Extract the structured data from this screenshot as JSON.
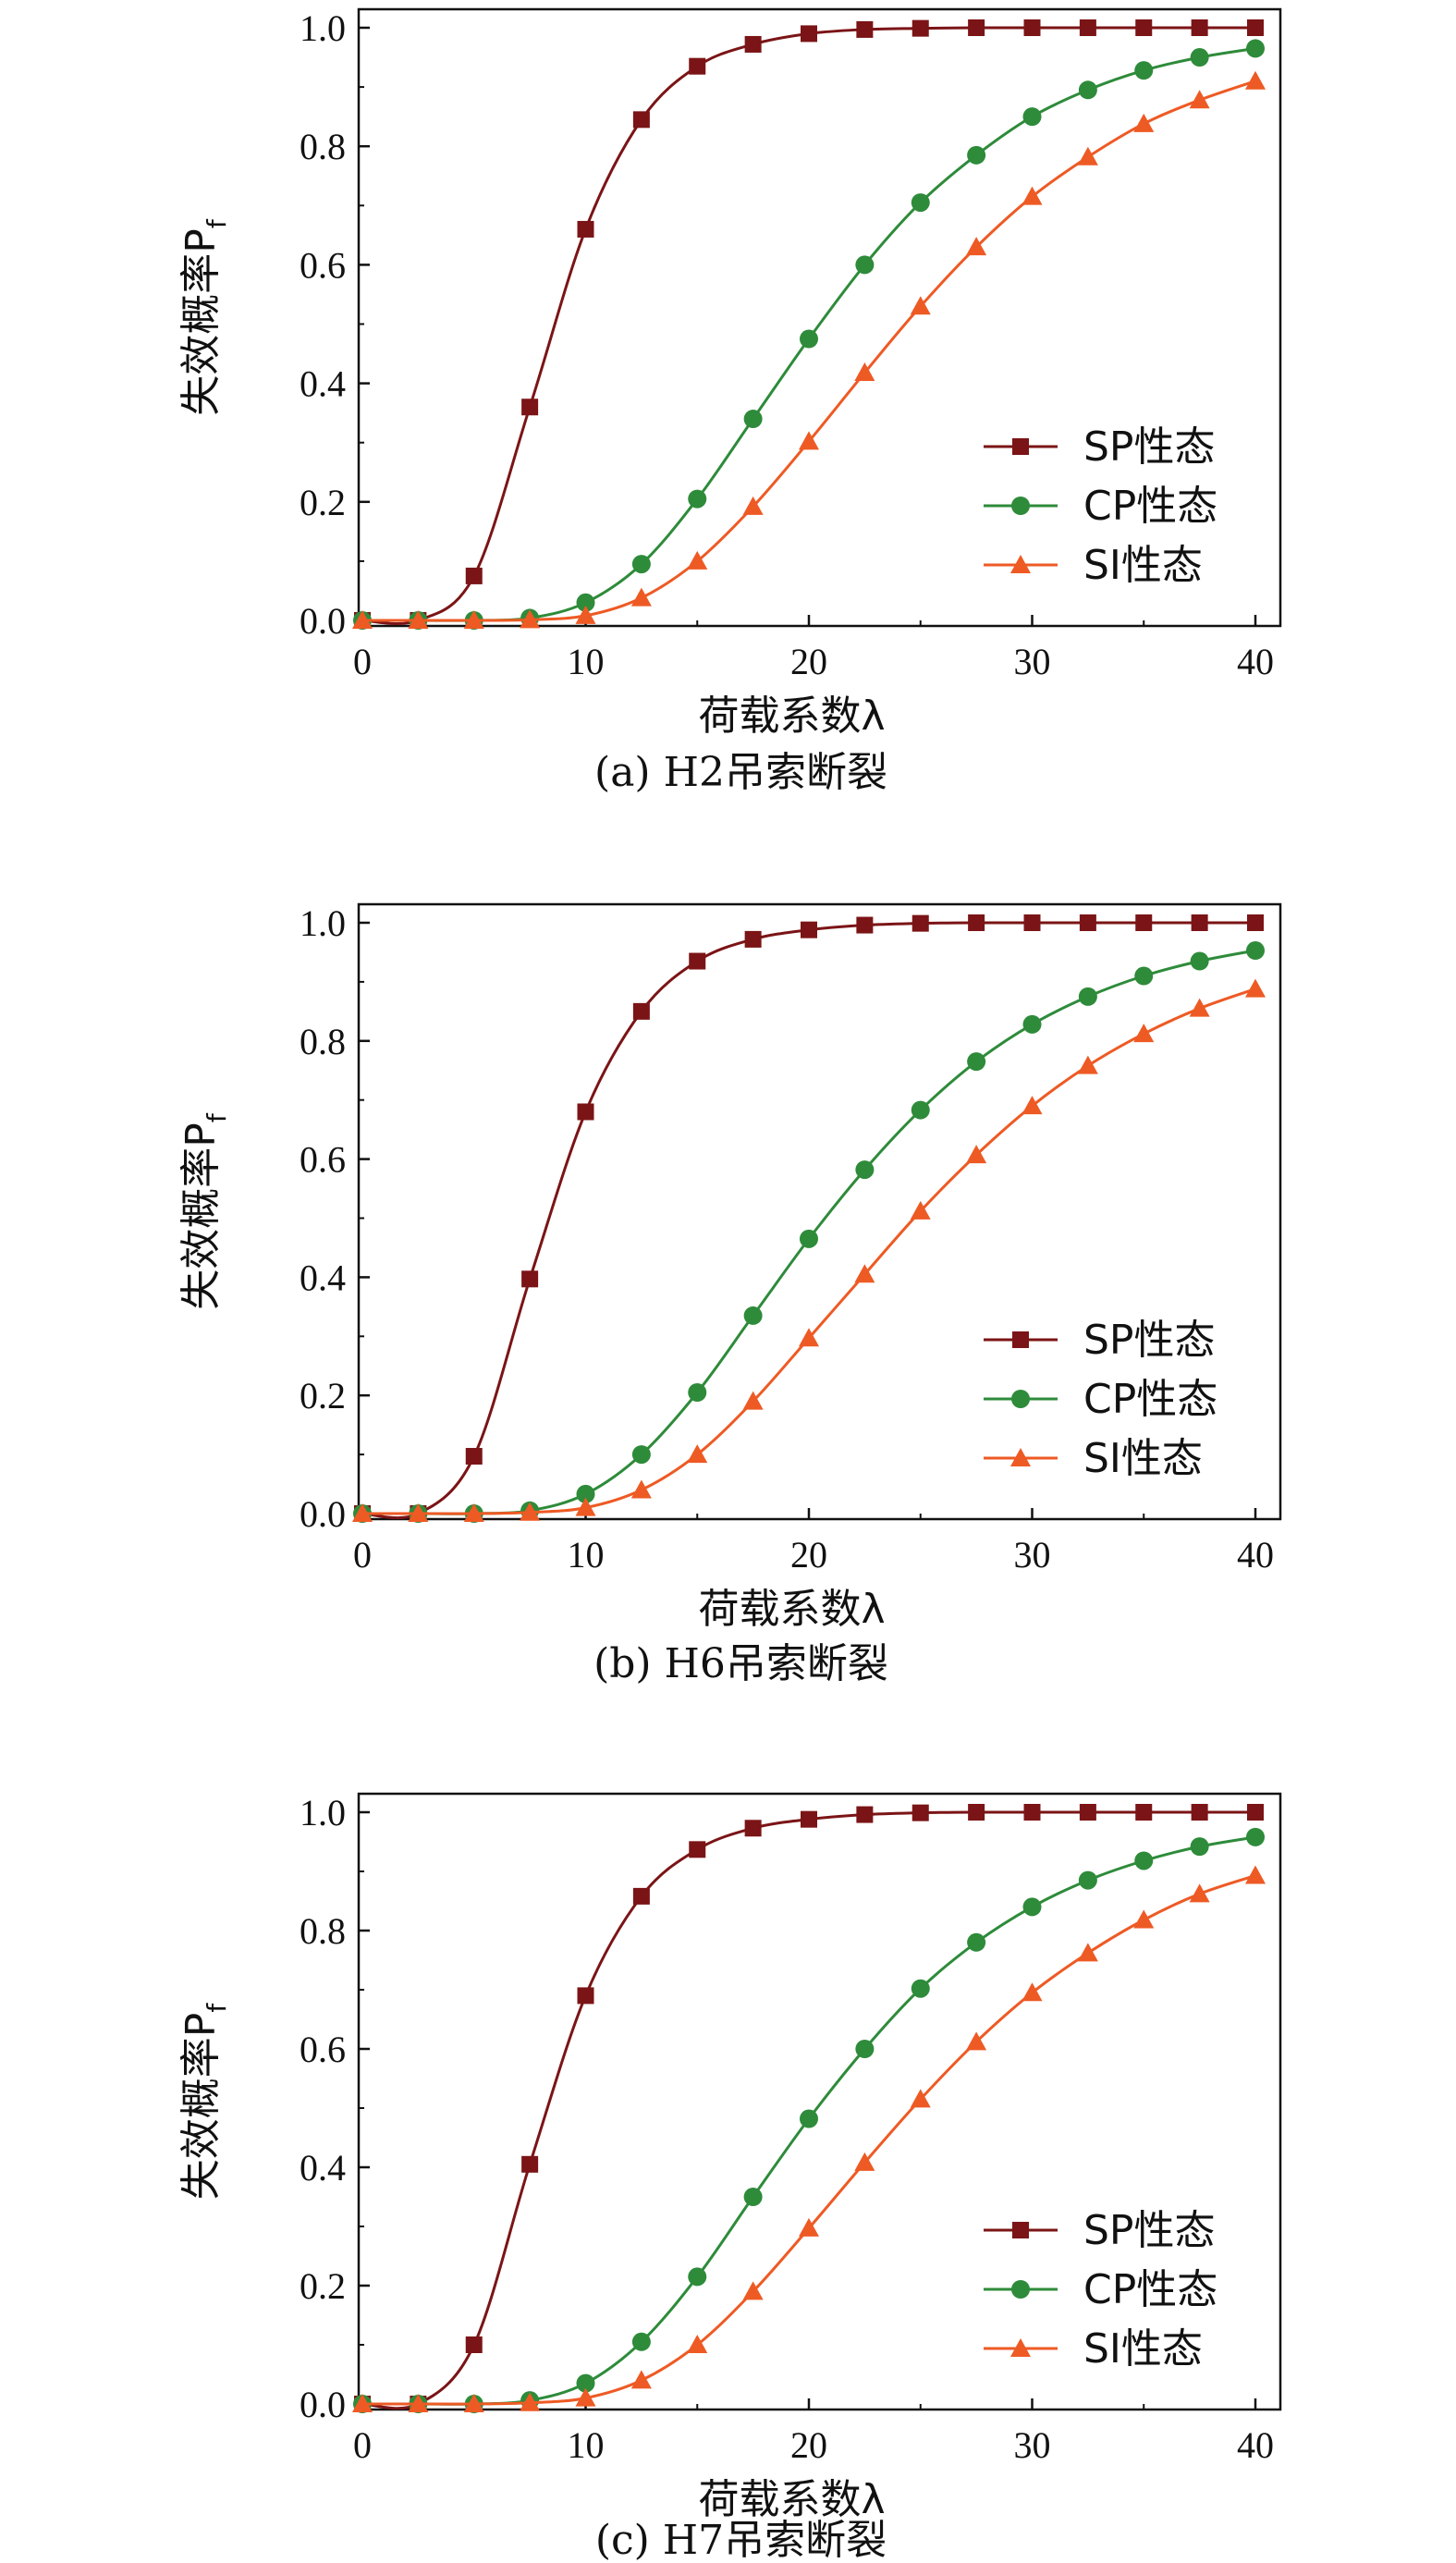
{
  "chart_data": [
    {
      "type": "line",
      "caption": "(a) H2吊索断裂",
      "xlabel": "荷载系数λ",
      "ylabel": "失效概率P",
      "ylabel_sub": "f",
      "xlim": [
        0,
        40
      ],
      "ylim": [
        0,
        1.0
      ],
      "xticks": [
        "0",
        "10",
        "20",
        "30",
        "40"
      ],
      "yticks": [
        "0.0",
        "0.2",
        "0.4",
        "0.6",
        "0.8",
        "1.0"
      ],
      "legend_position": "lower-right",
      "x": [
        0,
        2.5,
        5,
        7.5,
        10,
        12.5,
        15,
        17.5,
        20,
        22.5,
        25,
        27.5,
        30,
        32.5,
        35,
        37.5,
        40
      ],
      "series": [
        {
          "name": "SP性态",
          "marker": "square",
          "color": "#7B1416",
          "values": [
            0,
            0,
            0.075,
            0.36,
            0.66,
            0.845,
            0.935,
            0.972,
            0.99,
            0.997,
            0.999,
            1.0,
            1.0,
            1.0,
            1.0,
            1.0,
            1.0
          ]
        },
        {
          "name": "CP性态",
          "marker": "circle",
          "color": "#2E8B3A",
          "values": [
            0,
            0,
            0,
            0.004,
            0.03,
            0.095,
            0.205,
            0.34,
            0.475,
            0.6,
            0.705,
            0.785,
            0.85,
            0.895,
            0.928,
            0.95,
            0.965
          ]
        },
        {
          "name": "SI性态",
          "marker": "triangle",
          "color": "#EE5A24",
          "values": [
            0,
            0,
            0,
            0.001,
            0.008,
            0.038,
            0.1,
            0.192,
            0.302,
            0.418,
            0.53,
            0.63,
            0.715,
            0.782,
            0.838,
            0.878,
            0.91
          ]
        }
      ]
    },
    {
      "type": "line",
      "caption": "(b) H6吊索断裂",
      "xlabel": "荷载系数λ",
      "ylabel": "失效概率P",
      "ylabel_sub": "f",
      "xlim": [
        0,
        40
      ],
      "ylim": [
        0,
        1.0
      ],
      "xticks": [
        "0",
        "10",
        "20",
        "30",
        "40"
      ],
      "yticks": [
        "0.0",
        "0.2",
        "0.4",
        "0.6",
        "0.8",
        "1.0"
      ],
      "legend_position": "lower-right",
      "x": [
        0,
        2.5,
        5,
        7.5,
        10,
        12.5,
        15,
        17.5,
        20,
        22.5,
        25,
        27.5,
        30,
        32.5,
        35,
        37.5,
        40
      ],
      "series": [
        {
          "name": "SP性态",
          "marker": "square",
          "color": "#7B1416",
          "values": [
            0,
            0,
            0.097,
            0.397,
            0.68,
            0.85,
            0.935,
            0.972,
            0.988,
            0.996,
            0.999,
            1.0,
            1.0,
            1.0,
            1.0,
            1.0,
            1.0
          ]
        },
        {
          "name": "CP性态",
          "marker": "circle",
          "color": "#2E8B3A",
          "values": [
            0,
            0,
            0,
            0.005,
            0.033,
            0.1,
            0.205,
            0.335,
            0.465,
            0.582,
            0.683,
            0.765,
            0.828,
            0.875,
            0.91,
            0.935,
            0.953
          ]
        },
        {
          "name": "SI性态",
          "marker": "triangle",
          "color": "#EE5A24",
          "values": [
            0,
            0,
            0,
            0.002,
            0.01,
            0.04,
            0.1,
            0.19,
            0.297,
            0.405,
            0.512,
            0.607,
            0.69,
            0.758,
            0.812,
            0.855,
            0.888
          ]
        }
      ]
    },
    {
      "type": "line",
      "caption": "(c) H7吊索断裂",
      "xlabel": "荷载系数λ",
      "ylabel": "失效概率P",
      "ylabel_sub": "f",
      "xlim": [
        0,
        40
      ],
      "ylim": [
        0,
        1.0
      ],
      "xticks": [
        "0",
        "10",
        "20",
        "30",
        "40"
      ],
      "yticks": [
        "0.0",
        "0.2",
        "0.4",
        "0.6",
        "0.8",
        "1.0"
      ],
      "legend_position": "lower-right",
      "x": [
        0,
        2.5,
        5,
        7.5,
        10,
        12.5,
        15,
        17.5,
        20,
        22.5,
        25,
        27.5,
        30,
        32.5,
        35,
        37.5,
        40
      ],
      "series": [
        {
          "name": "SP性态",
          "marker": "square",
          "color": "#7B1416",
          "values": [
            0,
            0,
            0.1,
            0.405,
            0.69,
            0.858,
            0.937,
            0.973,
            0.988,
            0.996,
            0.999,
            1.0,
            1.0,
            1.0,
            1.0,
            1.0,
            1.0
          ]
        },
        {
          "name": "CP性态",
          "marker": "circle",
          "color": "#2E8B3A",
          "values": [
            0,
            0,
            0,
            0.006,
            0.035,
            0.105,
            0.215,
            0.35,
            0.482,
            0.6,
            0.702,
            0.78,
            0.84,
            0.885,
            0.918,
            0.942,
            0.958
          ]
        },
        {
          "name": "SI性态",
          "marker": "triangle",
          "color": "#EE5A24",
          "values": [
            0,
            0,
            0,
            0.002,
            0.01,
            0.04,
            0.1,
            0.19,
            0.297,
            0.408,
            0.515,
            0.612,
            0.695,
            0.762,
            0.818,
            0.862,
            0.893
          ]
        }
      ]
    }
  ]
}
